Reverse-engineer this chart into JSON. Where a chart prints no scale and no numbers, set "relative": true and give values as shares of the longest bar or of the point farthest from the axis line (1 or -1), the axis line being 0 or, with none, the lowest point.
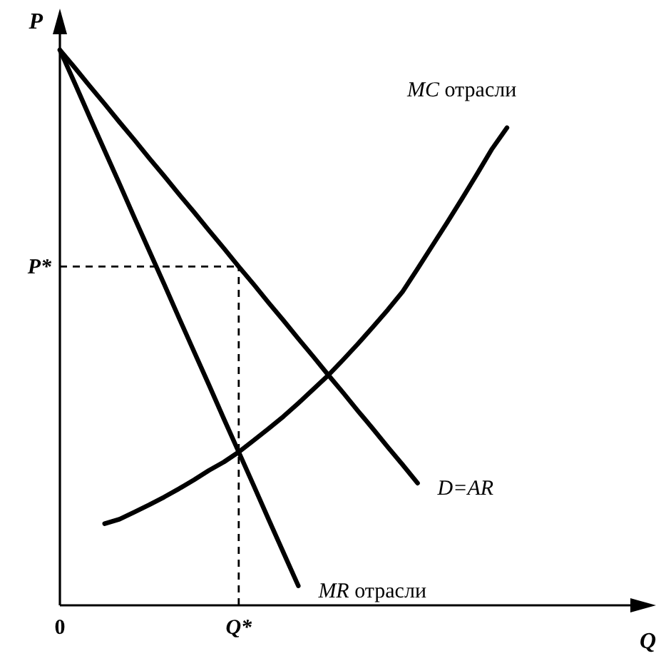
{
  "chart_data": {
    "type": "line",
    "relative": true,
    "xlabel": "Q",
    "ylabel": "P",
    "marker": "none",
    "line_style": "solid",
    "categories": [
      "0",
      null,
      null,
      null,
      null,
      null,
      null,
      null,
      null,
      null,
      null,
      null,
      "Q*",
      null,
      null,
      null,
      null,
      null,
      null,
      null,
      null,
      null,
      null,
      null,
      null,
      null,
      null,
      null,
      null,
      null,
      null,
      null,
      null,
      null,
      null,
      null,
      null,
      null,
      null,
      null,
      null
    ],
    "series": [
      {
        "name": "MC отрасли",
        "color": "#000000",
        "values": [
          null,
          null,
          null,
          0.147,
          0.155,
          0.168,
          0.181,
          0.195,
          0.21,
          0.226,
          0.243,
          0.258,
          0.276,
          0.297,
          0.318,
          0.34,
          0.364,
          0.389,
          0.414,
          0.442,
          0.471,
          0.501,
          0.532,
          0.565,
          0.606,
          0.648,
          0.69,
          0.733,
          0.777,
          0.822,
          0.86,
          null,
          null,
          null,
          null,
          null,
          null,
          null,
          null,
          null,
          null
        ]
      },
      {
        "name": "D=AR",
        "color": "#000000",
        "values": [
          1,
          0.968,
          0.935,
          0.903,
          0.87,
          0.838,
          0.805,
          0.773,
          0.74,
          0.708,
          0.675,
          0.643,
          0.61,
          0.578,
          0.545,
          0.513,
          0.48,
          0.448,
          0.415,
          0.383,
          0.35,
          0.318,
          0.285,
          0.253,
          0.22,
          null,
          null,
          null,
          null,
          null,
          null,
          null,
          null,
          null,
          null,
          null,
          null,
          null,
          null,
          null,
          null
        ]
      },
      {
        "name": "MR отрасли",
        "color": "#000000",
        "values": [
          1,
          0.94,
          0.879,
          0.819,
          0.759,
          0.698,
          0.638,
          0.578,
          0.517,
          0.457,
          0.397,
          0.336,
          0.276,
          0.216,
          0.155,
          0.095,
          0.035,
          null,
          null,
          null,
          null,
          null,
          null,
          null,
          null,
          null,
          null,
          null,
          null,
          null,
          null,
          null,
          null,
          null,
          null,
          null,
          null,
          null,
          null,
          null,
          null
        ]
      }
    ],
    "ref_lines": [
      {
        "axis": "y",
        "value": 0.61,
        "label": "P*",
        "line_style": "dashed"
      },
      {
        "axis": "x",
        "value": "Q*",
        "line_style": "dashed"
      }
    ]
  }
}
